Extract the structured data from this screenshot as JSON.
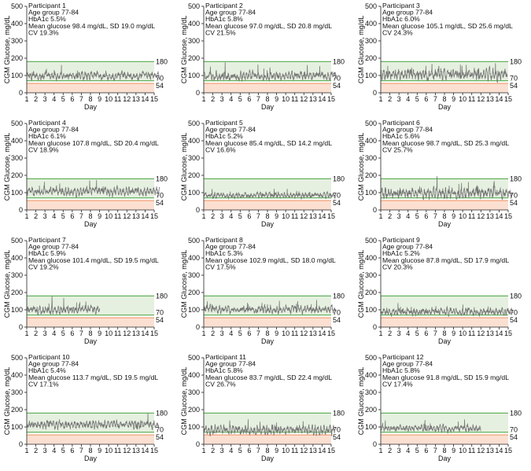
{
  "figure": {
    "xlabel": "Day",
    "ylabel": "CGM Glucose, mg/dL",
    "ylim": [
      0,
      500
    ],
    "xlim": [
      1,
      15
    ],
    "yticks": [
      0,
      100,
      200,
      300,
      400,
      500
    ],
    "xticks": [
      1,
      2,
      3,
      4,
      5,
      6,
      7,
      8,
      9,
      10,
      11,
      12,
      13,
      14,
      15
    ],
    "reference_lines": {
      "upper": 180,
      "lower": 70,
      "hypo": 54
    },
    "colors": {
      "range_band": "#e6f0e0",
      "range_line": "#63b35f",
      "hypo_band": "#fbe0d2",
      "hypo_line": "#f2a177",
      "trace": "#777777",
      "axis": "#222222"
    }
  },
  "chart_data": [
    {
      "type": "line",
      "participant": "Participant 1",
      "age": "Age group 77-84",
      "hba1c": "HbA1c 5.5%",
      "mean_sd": "Mean glucose 98.4 mg/dL, SD 19.0 mg/dL",
      "cv": "CV 19.3%",
      "mean": 98.4,
      "sd": 19.0,
      "days": 14.6
    },
    {
      "type": "line",
      "participant": "Participant 2",
      "age": "Age group 77-84",
      "hba1c": "HbA1c 5.8%",
      "mean_sd": "Mean glucose 97.0 mg/dL, SD 20.8 mg/dL",
      "cv": "CV 21.5%",
      "mean": 97.0,
      "sd": 20.8,
      "days": 14.6
    },
    {
      "type": "line",
      "participant": "Participant 3",
      "age": "Age group 77-84",
      "hba1c": "HbA1c 6.0%",
      "mean_sd": "Mean glucose 105.1 mg/dL, SD 25.6 mg/dL",
      "cv": "CV 24.3%",
      "mean": 105.1,
      "sd": 25.6,
      "days": 13.9
    },
    {
      "type": "line",
      "participant": "Participant 4",
      "age": "Age group 77-84",
      "hba1c": "HbA1c 6.1%",
      "mean_sd": "Mean glucose 107.8 mg/dL, SD 20.4 mg/dL",
      "cv": "CV 18.9%",
      "mean": 107.8,
      "sd": 20.4,
      "days": 14.6
    },
    {
      "type": "line",
      "participant": "Participant 5",
      "age": "Age group 77-84",
      "hba1c": "HbA1c 5.2%",
      "mean_sd": "Mean glucose 85.4 mg/dL, SD 14.2 mg/dL",
      "cv": "CV 16.6%",
      "mean": 85.4,
      "sd": 14.2,
      "days": 14.5
    },
    {
      "type": "line",
      "participant": "Participant 6",
      "age": "Age group 77-84",
      "hba1c": "HbA1c 5.6%",
      "mean_sd": "Mean glucose 98.7 mg/dL, SD 25.3 mg/dL",
      "cv": "CV 25.7%",
      "mean": 98.7,
      "sd": 25.3,
      "days": 14.4
    },
    {
      "type": "line",
      "participant": "Participant 7",
      "age": "Age group 77-84",
      "hba1c": "HbA1c 5.9%",
      "mean_sd": "Mean glucose 101.4 mg/dL, SD 19.5 mg/dL",
      "cv": "CV 19.2%",
      "mean": 101.4,
      "sd": 19.5,
      "days": 8.0
    },
    {
      "type": "line",
      "participant": "Participant 8",
      "age": "Age group 77-84",
      "hba1c": "HbA1c 5.3%",
      "mean_sd": "Mean glucose 102.9 mg/dL, SD 18.0 mg/dL",
      "cv": "CV 17.5%",
      "mean": 102.9,
      "sd": 18.0,
      "days": 14.5
    },
    {
      "type": "line",
      "participant": "Participant 9",
      "age": "Age group 77-84",
      "hba1c": "HbA1c 5.2%",
      "mean_sd": "Mean glucose 87.8 mg/dL, SD 17.9 mg/dL",
      "cv": "CV 20.3%",
      "mean": 87.8,
      "sd": 17.9,
      "days": 14.5
    },
    {
      "type": "line",
      "participant": "Participant 10",
      "age": "Age group 77-84",
      "hba1c": "HbA1c 5.4%",
      "mean_sd": "Mean glucose 113.7 mg/dL, SD 19.5 mg/dL",
      "cv": "CV 17.1%",
      "mean": 113.7,
      "sd": 19.5,
      "days": 14.5
    },
    {
      "type": "line",
      "participant": "Participant 11",
      "age": "Age group 77-84",
      "hba1c": "HbA1c 5.8%",
      "mean_sd": "Mean glucose 83.7 mg/dL, SD 22.4 mg/dL",
      "cv": "CV 26.7%",
      "mean": 83.7,
      "sd": 22.4,
      "days": 14.4
    },
    {
      "type": "line",
      "participant": "Participant 12",
      "age": "Age group 77-84",
      "hba1c": "HbA1c 5.8%",
      "mean_sd": "Mean glucose 91.8 mg/dL, SD 15.9 mg/dL",
      "cv": "CV 17.4%",
      "mean": 91.8,
      "sd": 15.9,
      "days": 11.0
    }
  ]
}
